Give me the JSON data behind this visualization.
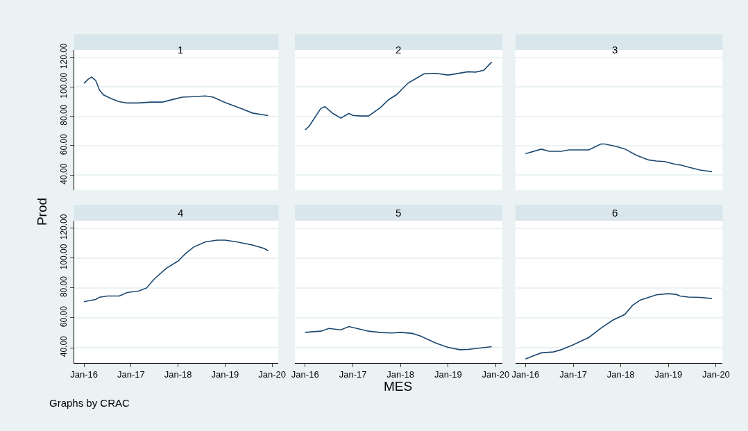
{
  "chart_data": [
    {
      "type": "line",
      "title": "1",
      "ylabel": "Prod",
      "tick_labels": "y",
      "grid": "y",
      "xlim": [
        "2015-10-15",
        "2020-02-20"
      ],
      "ylim": [
        30,
        125
      ],
      "yticks": [
        {
          "value": 40,
          "label": "40.00"
        },
        {
          "value": 60,
          "label": "60.00"
        },
        {
          "value": 80,
          "label": "80.00"
        },
        {
          "value": 100,
          "label": "100.00"
        },
        {
          "value": 120,
          "label": "120.00"
        }
      ],
      "series": [
        {
          "color": "#1a476f",
          "x": [
            "2016-01",
            "2016-02",
            "2016-03",
            "2016-04",
            "2016-05",
            "2016-06",
            "2016-08",
            "2016-10",
            "2016-12",
            "2017-03",
            "2017-06",
            "2017-09",
            "2017-12",
            "2018-02",
            "2018-05",
            "2018-08",
            "2018-10",
            "2019-01",
            "2019-05",
            "2019-08",
            "2019-12"
          ],
          "values": [
            102.3,
            105,
            106.6,
            104.3,
            97.7,
            94.5,
            91.9,
            89.9,
            89,
            89,
            89.6,
            89.6,
            91.6,
            93,
            93.3,
            93.8,
            93,
            89.3,
            85.4,
            82.2,
            80.5
          ]
        }
      ]
    },
    {
      "type": "line",
      "title": "2",
      "tick_labels": false,
      "grid": "y",
      "xlim": [
        "2015-10-15",
        "2020-02-20"
      ],
      "ylim": [
        30,
        125
      ],
      "yticks": [
        {
          "value": 40,
          "label": null
        },
        {
          "value": 60,
          "label": null
        },
        {
          "value": 80,
          "label": null
        },
        {
          "value": 100,
          "label": null
        },
        {
          "value": 120,
          "label": null
        }
      ],
      "series": [
        {
          "color": "#1a476f",
          "x": [
            "2016-01",
            "2016-02",
            "2016-03",
            "2016-05",
            "2016-06",
            "2016-08",
            "2016-10",
            "2016-12",
            "2017-01",
            "2017-03",
            "2017-05",
            "2017-08",
            "2017-10",
            "2017-12",
            "2018-03",
            "2018-05",
            "2018-07",
            "2018-10",
            "2019-01",
            "2019-03",
            "2019-06",
            "2019-08",
            "2019-10",
            "2019-12"
          ],
          "values": [
            70.7,
            73.3,
            77.2,
            85.4,
            86.5,
            81.9,
            78.8,
            81.9,
            80.6,
            80.2,
            80.2,
            86,
            91.2,
            94.6,
            102.6,
            105.7,
            108.8,
            109.1,
            108,
            108.8,
            110.2,
            110,
            111.2,
            116.8
          ]
        }
      ]
    },
    {
      "type": "line",
      "title": "3",
      "tick_labels": false,
      "grid": "y",
      "xlim": [
        "2015-10-15",
        "2020-02-20"
      ],
      "ylim": [
        30,
        125
      ],
      "yticks": [
        {
          "value": 40,
          "label": null
        },
        {
          "value": 60,
          "label": null
        },
        {
          "value": 80,
          "label": null
        },
        {
          "value": 100,
          "label": null
        },
        {
          "value": 120,
          "label": null
        }
      ],
      "series": [
        {
          "color": "#1a476f",
          "x": [
            "2016-01",
            "2016-05",
            "2016-07",
            "2016-10",
            "2016-12",
            "2017-05",
            "2017-08",
            "2017-09",
            "2017-12",
            "2018-02",
            "2018-05",
            "2018-08",
            "2018-10",
            "2018-12",
            "2019-03",
            "2019-04",
            "2019-06",
            "2019-09",
            "2019-12"
          ],
          "values": [
            54.6,
            57.7,
            56.2,
            56.2,
            57.2,
            57.2,
            61.2,
            61.2,
            59.4,
            57.8,
            53.5,
            50.4,
            49.6,
            49.3,
            47.3,
            47,
            45.5,
            43.5,
            42.4
          ]
        }
      ]
    },
    {
      "type": "line",
      "title": "4",
      "grid": "y",
      "xlim": [
        "2015-10-15",
        "2020-02-20"
      ],
      "ylim": [
        30,
        125
      ],
      "xticks": [
        {
          "value": "2016-01",
          "label": "Jan-16"
        },
        {
          "value": "2017-01",
          "label": "Jan-17"
        },
        {
          "value": "2018-01",
          "label": "Jan-18"
        },
        {
          "value": "2019-01",
          "label": "Jan-19"
        },
        {
          "value": "2020-01",
          "label": "Jan-20"
        }
      ],
      "yticks": [
        {
          "value": 40,
          "label": "40.00"
        },
        {
          "value": 60,
          "label": "60.00"
        },
        {
          "value": 80,
          "label": "80.00"
        },
        {
          "value": 100,
          "label": "100.00"
        },
        {
          "value": 120,
          "label": "120.00"
        }
      ],
      "series": [
        {
          "color": "#1a476f",
          "x": [
            "2016-01",
            "2016-03",
            "2016-04",
            "2016-05",
            "2016-07",
            "2016-10",
            "2016-12",
            "2017-03",
            "2017-05",
            "2017-07",
            "2017-10",
            "2018-01",
            "2018-03",
            "2018-05",
            "2018-08",
            "2018-11",
            "2019-01",
            "2019-04",
            "2019-08",
            "2019-11",
            "2019-12"
          ],
          "values": [
            70.8,
            71.8,
            72.3,
            73.8,
            74.6,
            74.6,
            76.9,
            78,
            80,
            86.1,
            93.1,
            98,
            103.1,
            107.3,
            110.8,
            112,
            112,
            110.8,
            108.7,
            106.4,
            104.9
          ]
        }
      ]
    },
    {
      "type": "line",
      "title": "5",
      "xlabel": "MES",
      "tick_labels": "x",
      "grid": "y",
      "xlim": [
        "2015-10-15",
        "2020-02-20"
      ],
      "ylim": [
        30,
        125
      ],
      "xticks": [
        {
          "value": "2016-01",
          "label": "Jan-16"
        },
        {
          "value": "2017-01",
          "label": "Jan-17"
        },
        {
          "value": "2018-01",
          "label": "Jan-18"
        },
        {
          "value": "2019-01",
          "label": "Jan-19"
        },
        {
          "value": "2020-01",
          "label": "Jan-20"
        }
      ],
      "yticks": [
        {
          "value": 40,
          "label": null
        },
        {
          "value": 60,
          "label": null
        },
        {
          "value": 80,
          "label": null
        },
        {
          "value": 100,
          "label": null
        },
        {
          "value": 120,
          "label": null
        }
      ],
      "series": [
        {
          "color": "#1a476f",
          "x": [
            "2016-01",
            "2016-05",
            "2016-07",
            "2016-10",
            "2016-12",
            "2017-02",
            "2017-05",
            "2017-08",
            "2017-11",
            "2018-01",
            "2018-04",
            "2018-06",
            "2018-10",
            "2019-01",
            "2019-04",
            "2019-06",
            "2019-09",
            "2019-12"
          ],
          "values": [
            50.3,
            51.1,
            52.9,
            52,
            54.2,
            52.9,
            51.1,
            50.2,
            49.9,
            50.3,
            49.6,
            47.9,
            43.1,
            40.3,
            38.7,
            38.9,
            39.8,
            40.7
          ]
        }
      ]
    },
    {
      "type": "line",
      "title": "6",
      "tick_labels": "x",
      "grid": "y",
      "annotations": [
        "Graphs by CRAC"
      ],
      "xlim": [
        "2015-10-15",
        "2020-02-20"
      ],
      "ylim": [
        30,
        125
      ],
      "xticks": [
        {
          "value": "2016-01",
          "label": "Jan-16"
        },
        {
          "value": "2017-01",
          "label": "Jan-17"
        },
        {
          "value": "2018-01",
          "label": "Jan-18"
        },
        {
          "value": "2019-01",
          "label": "Jan-19"
        },
        {
          "value": "2020-01",
          "label": "Jan-20"
        }
      ],
      "yticks": [
        {
          "value": 40,
          "label": null
        },
        {
          "value": 60,
          "label": null
        },
        {
          "value": 80,
          "label": null
        },
        {
          "value": 100,
          "label": null
        },
        {
          "value": 120,
          "label": null
        }
      ],
      "series": [
        {
          "color": "#1a476f",
          "x": [
            "2016-01",
            "2016-03",
            "2016-05",
            "2016-08",
            "2016-10",
            "2017-01",
            "2017-05",
            "2017-08",
            "2017-11",
            "2018-02",
            "2018-04",
            "2018-06",
            "2018-10",
            "2019-01",
            "2019-03",
            "2019-04",
            "2019-06",
            "2019-09",
            "2019-12"
          ],
          "values": [
            32.5,
            34.6,
            36.6,
            37.2,
            38.7,
            42,
            46.9,
            53.1,
            58.5,
            62.3,
            68.4,
            72,
            75.4,
            76.2,
            75.7,
            74.6,
            73.9,
            73.7,
            72.9
          ]
        }
      ]
    }
  ]
}
